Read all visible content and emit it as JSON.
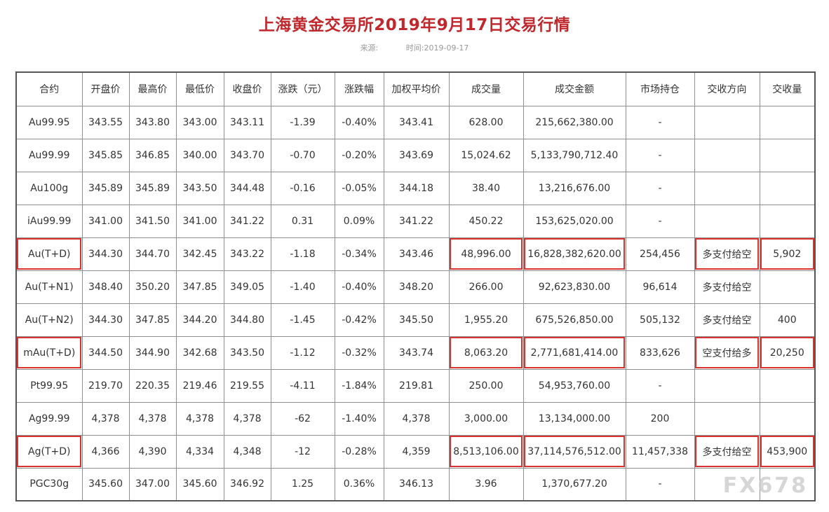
{
  "title": "上海黄金交易所2019年9月17日交易行情",
  "meta": {
    "source_label": "来源:",
    "time_label": "时间:2019-09-17"
  },
  "columns": [
    "合约",
    "开盘价",
    "最高价",
    "最低价",
    "收盘价",
    "涨跌（元）",
    "涨跌幅",
    "加权平均价",
    "成交量",
    "成交金额",
    "市场持仓",
    "交收方向",
    "交收量"
  ],
  "rows": [
    [
      "Au99.95",
      "343.55",
      "343.80",
      "343.00",
      "343.11",
      "-1.39",
      "-0.40%",
      "343.41",
      "628.00",
      "215,662,380.00",
      "-",
      "",
      ""
    ],
    [
      "Au99.99",
      "345.85",
      "346.85",
      "340.00",
      "343.70",
      "-0.70",
      "-0.20%",
      "343.69",
      "15,024.62",
      "5,133,790,712.40",
      "-",
      "",
      ""
    ],
    [
      "Au100g",
      "345.89",
      "345.89",
      "343.50",
      "344.48",
      "-0.16",
      "-0.05%",
      "344.18",
      "38.40",
      "13,216,676.00",
      "-",
      "",
      ""
    ],
    [
      "iAu99.99",
      "341.00",
      "341.50",
      "341.00",
      "341.22",
      "0.31",
      "0.09%",
      "341.22",
      "450.22",
      "153,625,020.00",
      "-",
      "",
      ""
    ],
    [
      "Au(T+D)",
      "344.30",
      "344.70",
      "342.45",
      "343.22",
      "-1.18",
      "-0.34%",
      "343.46",
      "48,996.00",
      "16,828,382,620.00",
      "254,456",
      "多支付给空",
      "5,902"
    ],
    [
      "Au(T+N1)",
      "348.40",
      "350.20",
      "347.85",
      "349.05",
      "-1.40",
      "-0.40%",
      "348.20",
      "266.00",
      "92,623,830.00",
      "96,614",
      "多支付给空",
      ""
    ],
    [
      "Au(T+N2)",
      "344.30",
      "347.85",
      "344.20",
      "344.80",
      "-1.45",
      "-0.42%",
      "345.50",
      "1,955.20",
      "675,526,850.00",
      "505,132",
      "多支付给空",
      "400"
    ],
    [
      "mAu(T+D)",
      "344.50",
      "344.90",
      "342.68",
      "343.50",
      "-1.12",
      "-0.32%",
      "343.74",
      "8,063.20",
      "2,771,681,414.00",
      "833,626",
      "空支付给多",
      "20,250"
    ],
    [
      "Pt99.95",
      "219.70",
      "220.35",
      "219.46",
      "219.55",
      "-4.11",
      "-1.84%",
      "219.81",
      "250.00",
      "54,953,760.00",
      "-",
      "",
      ""
    ],
    [
      "Ag99.99",
      "4,378",
      "4,378",
      "4,378",
      "4,378",
      "-62",
      "-1.40%",
      "4,378",
      "3,000.00",
      "13,134,000.00",
      "200",
      "",
      ""
    ],
    [
      "Ag(T+D)",
      "4,366",
      "4,390",
      "4,334",
      "4,348",
      "-12",
      "-0.28%",
      "4,359",
      "8,513,106.00",
      "37,114,576,512.00",
      "11,457,338",
      "多支付给空",
      "453,900"
    ],
    [
      "PGC30g",
      "345.60",
      "347.00",
      "345.60",
      "346.92",
      "1.25",
      "0.36%",
      "346.13",
      "3.96",
      "1,370,677.20",
      "-",
      "",
      ""
    ]
  ],
  "highlighted_rows": [
    4,
    7,
    10
  ],
  "highlight_color": "#d9322f",
  "title_color": "#c0282d",
  "watermark": "FX678"
}
